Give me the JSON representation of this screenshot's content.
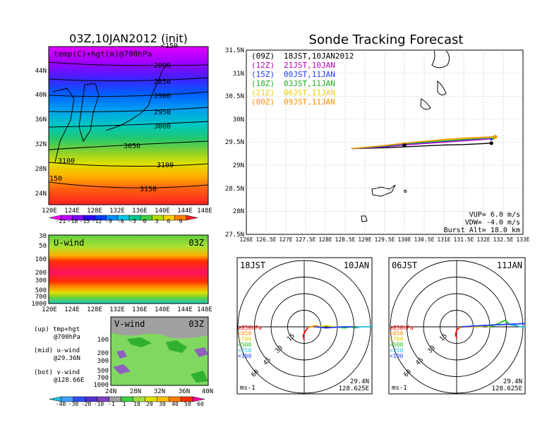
{
  "left_panel": {
    "title": "03Z,10JAN2012 (init)",
    "map_label": "temp(C)+hgt(m)@700hPa",
    "lat_ticks": [
      "44N",
      "40N",
      "36N",
      "32N",
      "28N",
      "24N"
    ],
    "lon_ticks": [
      "120E",
      "124E",
      "128E",
      "132E",
      "136E",
      "140E",
      "144E",
      "148E"
    ],
    "contour_labels": [
      "2800",
      "2850",
      "2900",
      "2950",
      "3000",
      "3050",
      "3100",
      "3100",
      "3150",
      "150",
      "<150"
    ],
    "temp_colorbar": [
      "-21",
      "-18",
      "-15",
      "-12",
      "-9",
      "-6",
      "-3",
      "0",
      "3",
      "6",
      "9"
    ],
    "temp_colors": [
      "#ff00ff",
      "#c000ff",
      "#8000ff",
      "#3000ff",
      "#0040ff",
      "#0090ff",
      "#00c8e8",
      "#00c890",
      "#40d040",
      "#b0e000",
      "#ffd000",
      "#ff8000",
      "#ff2020"
    ]
  },
  "u_wind": {
    "label": "U-wind",
    "time": "03Z",
    "p_ticks": [
      "30",
      "50",
      "100",
      "200",
      "300",
      "500",
      "700",
      "1000"
    ],
    "lon_ticks": [
      "120E",
      "124E",
      "128E",
      "132E",
      "136E",
      "140E",
      "144E",
      "148E"
    ]
  },
  "v_wind": {
    "label": "V-wind",
    "time": "03Z",
    "p_ticks": [
      "100",
      "200",
      "300",
      "500",
      "700",
      "1000"
    ],
    "lat_ticks": [
      "24N",
      "28N",
      "32N",
      "36N",
      "40N"
    ]
  },
  "side_legend": {
    "up": "(up) tmp+hgt",
    "up2": "@700hPa",
    "mid": "(mid) u-wind",
    "mid2": "@29.36N",
    "bot": "(bot) v-wind",
    "bot2": "@128.66E"
  },
  "wind_colorbar": [
    "-40",
    "-30",
    "-20",
    "-10",
    "-1",
    "1",
    "10",
    "20",
    "30",
    "40",
    "50",
    "60"
  ],
  "wind_colors": [
    "#20c0e0",
    "#40a0ff",
    "#3050f0",
    "#5030d0",
    "#8040c0",
    "#a0a0a0",
    "#40d040",
    "#a0e040",
    "#e0e000",
    "#ffc000",
    "#ff8000",
    "#ff3000",
    "#ff00a0"
  ],
  "track": {
    "title": "Sonde Tracking Forecast",
    "lat_ticks": [
      "31.5N",
      "31N",
      "30.5N",
      "30N",
      "29.5N",
      "29N",
      "28.5N",
      "28N",
      "27.5N"
    ],
    "lon_ticks": [
      "126E",
      "126.5E",
      "127E",
      "127.5E",
      "128E",
      "128.5E",
      "129E",
      "129.5E",
      "130E",
      "130.5E",
      "131E",
      "131.5E",
      "132E",
      "132.5E",
      "133E"
    ],
    "legend": [
      {
        "code": "(09Z)",
        "text": "18JST,10JAN2012",
        "color": "#000000"
      },
      {
        "code": "(12Z)",
        "text": "21JST,10JAN",
        "color": "#c000c0"
      },
      {
        "code": "(15Z)",
        "text": "00JST,11JAN",
        "color": "#2040ff"
      },
      {
        "code": "(18Z)",
        "text": "03JST,11JAN",
        "color": "#20b020"
      },
      {
        "code": "(21Z)",
        "text": "06JST,11JAN",
        "color": "#f0d000"
      },
      {
        "code": "(00Z)",
        "text": "09JST,11JAN",
        "color": "#ff9000"
      }
    ],
    "vup": "VUP=  6.0 m/s",
    "vdw": "VDW= -4.0 m/s",
    "burst": "Burst Alt= 18.0 km"
  },
  "hodo_left": {
    "time": "18JST",
    "date": "10JAN",
    "rings": [
      "15",
      "30",
      "45",
      "60"
    ],
    "levels": [
      "≥850hPa",
      "<850",
      "<700",
      "<500",
      "<250",
      "<100"
    ],
    "level_colors": [
      "#ff0000",
      "#ff9000",
      "#e0d000",
      "#20c020",
      "#20c0e0",
      "#2040ff"
    ],
    "unit": "ms-1",
    "lat": "29.4N",
    "lon": "128.625E"
  },
  "hodo_right": {
    "time": "06JST",
    "date": "11JAN",
    "rings": [
      "15",
      "30",
      "45",
      "60"
    ],
    "levels": [
      "≥850hPa",
      "<850",
      "<700",
      "<500",
      "<250",
      "<100"
    ],
    "level_colors": [
      "#ff0000",
      "#ff9000",
      "#e0d000",
      "#20c020",
      "#20c0e0",
      "#2040ff"
    ],
    "unit": "ms-1",
    "lat": "29.4N",
    "lon": "128.625E"
  },
  "chart_data": [
    {
      "type": "line",
      "title": "Sonde Tracking Forecast",
      "xlabel": "",
      "ylabel": "",
      "xlim": [
        126,
        133
      ],
      "ylim": [
        27.5,
        31.5
      ],
      "series": [
        {
          "name": "(09Z) 18JST,10JAN2012",
          "x": [
            128.66,
            129.5,
            130.0,
            130.5,
            131.0,
            131.5,
            132.0,
            132.2
          ],
          "y": [
            29.36,
            29.38,
            29.4,
            29.42,
            29.44,
            29.45,
            29.47,
            29.48
          ]
        },
        {
          "name": "(12Z) 21JST,10JAN",
          "x": [
            128.66,
            129.5,
            130.0,
            130.5,
            131.0,
            131.5,
            132.0,
            132.2
          ],
          "y": [
            29.36,
            29.4,
            29.44,
            29.47,
            29.5,
            29.53,
            29.56,
            29.58
          ]
        },
        {
          "name": "(15Z) 00JST,11JAN",
          "x": [
            128.66,
            129.5,
            130.0,
            130.5,
            131.0,
            131.5,
            132.0,
            132.2
          ],
          "y": [
            29.36,
            29.41,
            29.46,
            29.49,
            29.52,
            29.55,
            29.58,
            29.59
          ]
        },
        {
          "name": "(18Z) 03JST,11JAN",
          "x": [
            128.66,
            129.5,
            130.0,
            130.5,
            131.0,
            131.5,
            132.0,
            132.25
          ],
          "y": [
            29.36,
            29.42,
            29.47,
            29.5,
            29.53,
            29.56,
            29.59,
            29.6
          ]
        },
        {
          "name": "(21Z) 06JST,11JAN",
          "x": [
            128.66,
            129.5,
            130.0,
            130.5,
            131.0,
            131.5,
            132.0,
            132.3
          ],
          "y": [
            29.36,
            29.43,
            29.48,
            29.52,
            29.55,
            29.58,
            29.6,
            29.61
          ]
        },
        {
          "name": "(00Z) 09JST,11JAN",
          "x": [
            128.66,
            129.5,
            130.0,
            130.5,
            131.0,
            131.5,
            132.0,
            132.3
          ],
          "y": [
            29.36,
            29.43,
            29.48,
            29.52,
            29.56,
            29.59,
            29.61,
            29.62
          ]
        }
      ]
    },
    {
      "type": "line",
      "title": "18JST 10JAN",
      "xlim": [
        -60,
        60
      ],
      "ylim": [
        -60,
        60
      ],
      "series": [
        {
          "name": "≥850hPa",
          "u": [
            0,
            -1,
            1,
            3
          ],
          "v": [
            -12,
            -8,
            -4,
            -1
          ],
          "color": "#ff0000"
        },
        {
          "name": "<850",
          "u": [
            3,
            6,
            10,
            14
          ],
          "v": [
            -1,
            0,
            1,
            0
          ],
          "color": "#ff9000"
        },
        {
          "name": "<700",
          "u": [
            14,
            20,
            26,
            30
          ],
          "v": [
            0,
            1,
            0,
            0
          ],
          "color": "#e0d000"
        },
        {
          "name": "<500",
          "u": [
            30,
            36,
            42,
            46
          ],
          "v": [
            0,
            -1,
            0,
            -1
          ],
          "color": "#20c020"
        },
        {
          "name": "<250",
          "u": [
            46,
            52,
            58,
            62
          ],
          "v": [
            -1,
            0,
            0,
            1
          ],
          "color": "#20c0e0"
        },
        {
          "name": "<100",
          "u": [
            10,
            20,
            34,
            44
          ],
          "v": [
            0,
            -1,
            0,
            0
          ],
          "color": "#2040ff"
        }
      ]
    },
    {
      "type": "line",
      "title": "06JST 11JAN",
      "xlim": [
        -60,
        60
      ],
      "ylim": [
        -60,
        60
      ],
      "series": [
        {
          "name": "≥850hPa",
          "u": [
            0,
            -1,
            0,
            2
          ],
          "v": [
            -10,
            -7,
            -3,
            -1
          ],
          "color": "#ff0000"
        },
        {
          "name": "<850",
          "u": [
            2,
            6,
            10,
            14
          ],
          "v": [
            -1,
            0,
            0,
            0
          ],
          "color": "#ff9000"
        },
        {
          "name": "<700",
          "u": [
            14,
            20,
            26,
            30
          ],
          "v": [
            0,
            0,
            1,
            0
          ],
          "color": "#e0d000"
        },
        {
          "name": "<500",
          "u": [
            30,
            38,
            44,
            48
          ],
          "v": [
            0,
            3,
            6,
            2
          ],
          "color": "#20c020"
        },
        {
          "name": "<250",
          "u": [
            48,
            54,
            58,
            62
          ],
          "v": [
            2,
            1,
            0,
            0
          ],
          "color": "#20c0e0"
        },
        {
          "name": "<100",
          "u": [
            4,
            20,
            40,
            62
          ],
          "v": [
            0,
            1,
            2,
            3
          ],
          "color": "#2040ff"
        }
      ]
    }
  ]
}
